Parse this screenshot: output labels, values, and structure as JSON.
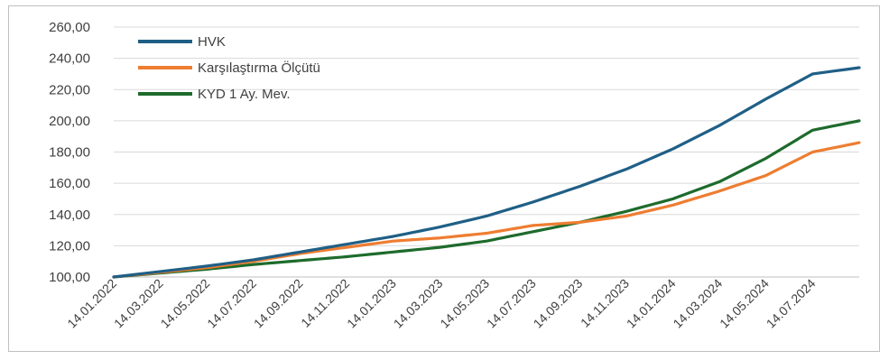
{
  "chart_data": {
    "type": "line",
    "title": "",
    "xlabel": "",
    "ylabel": "",
    "ylim": [
      100,
      260
    ],
    "y_ticks": [
      "100,00",
      "120,00",
      "140,00",
      "160,00",
      "180,00",
      "200,00",
      "220,00",
      "240,00",
      "260,00"
    ],
    "x_ticks": [
      "14.01.2022",
      "14.03.2022",
      "14.05.2022",
      "14.07.2022",
      "14.09.2022",
      "14.11.2022",
      "14.01.2023",
      "14.03.2023",
      "14.05.2023",
      "14.07.2023",
      "14.09.2023",
      "14.11.2023",
      "14.01.2024",
      "14.03.2024",
      "14.05.2024",
      "14.07.2024"
    ],
    "legend_position": "top-left",
    "grid": "horizontal",
    "x": [
      "14.01.2022",
      "14.03.2022",
      "14.05.2022",
      "14.07.2022",
      "14.09.2022",
      "14.11.2022",
      "14.01.2023",
      "14.03.2023",
      "14.05.2023",
      "14.07.2023",
      "14.09.2023",
      "14.11.2023",
      "14.01.2024",
      "14.03.2024",
      "14.05.2024",
      "14.07.2024",
      "14.08.2024"
    ],
    "series": [
      {
        "name": "HVK",
        "color": "#1f5f86",
        "values": [
          100,
          103.5,
          107,
          111,
          116,
          121,
          126,
          132,
          139,
          148,
          158,
          169,
          182,
          197,
          214,
          230,
          234
        ]
      },
      {
        "name": "Karşılaştırma Ölçütü",
        "color": "#ee7d31",
        "values": [
          100,
          103,
          106,
          110,
          115,
          119,
          123,
          125,
          128,
          133,
          135,
          139,
          146,
          155,
          165,
          180,
          186
        ]
      },
      {
        "name": "KYD 1 Ay. Mev.",
        "color": "#1e6b2c",
        "values": [
          100,
          102.5,
          105,
          108,
          110.5,
          113,
          116,
          119,
          123,
          129,
          135,
          142,
          150,
          161,
          176,
          194,
          200
        ]
      }
    ]
  }
}
